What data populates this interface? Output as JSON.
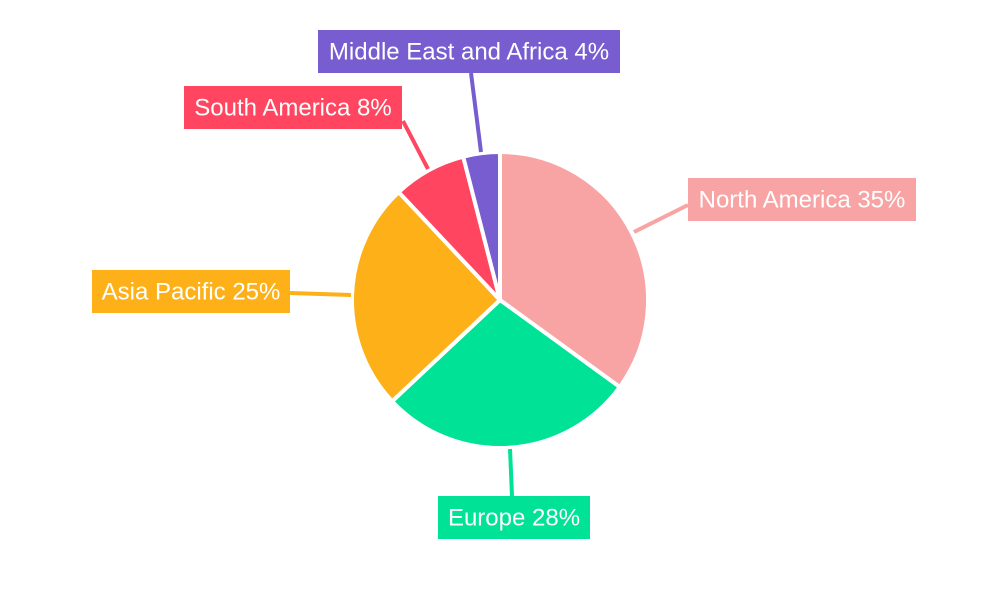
{
  "chart_data": {
    "type": "pie",
    "title": "",
    "start_angle": "top, clockwise",
    "slices": [
      {
        "label": "North America",
        "value": 35,
        "display": "North America 35%",
        "color": "#F8A3A4"
      },
      {
        "label": "Europe",
        "value": 28,
        "display": "Europe 28%",
        "color": "#00E396"
      },
      {
        "label": "Asia Pacific",
        "value": 25,
        "display": "Asia Pacific 25%",
        "color": "#FEB019"
      },
      {
        "label": "South America",
        "value": 8,
        "display": "South America 8%",
        "color": "#FF4560"
      },
      {
        "label": "Middle East and Africa",
        "value": 4,
        "display": "Middle East and Africa 4%",
        "color": "#775DD0"
      }
    ],
    "legend": "none",
    "label_style": "outside boxed labels with leader lines"
  }
}
